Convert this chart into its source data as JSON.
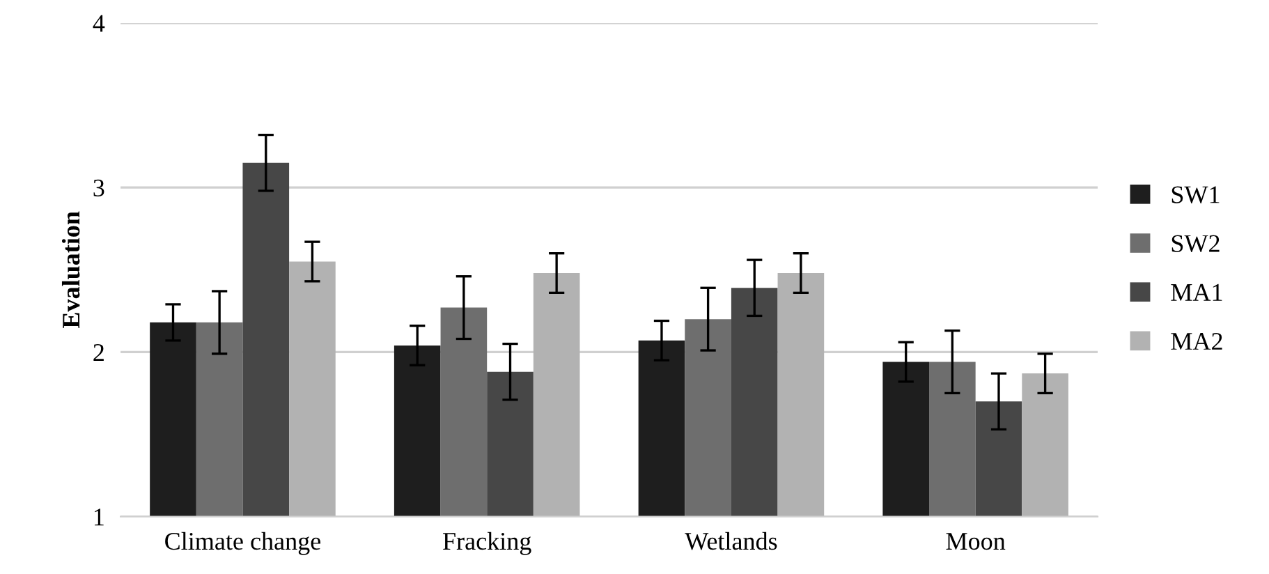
{
  "chart_data": {
    "type": "bar",
    "ylabel": "Evaluation",
    "categories": [
      "Climate change",
      "Fracking",
      "Wetlands",
      "Moon"
    ],
    "series": [
      {
        "name": "SW1",
        "color": "#1e1e1e",
        "values": [
          2.18,
          2.04,
          2.07,
          1.94
        ],
        "errors": [
          0.11,
          0.12,
          0.12,
          0.12
        ]
      },
      {
        "name": "SW2",
        "color": "#6e6e6e",
        "values": [
          2.18,
          2.27,
          2.2,
          1.94
        ],
        "errors": [
          0.19,
          0.19,
          0.19,
          0.19
        ]
      },
      {
        "name": "MA1",
        "color": "#474747",
        "values": [
          3.15,
          1.88,
          2.39,
          1.7
        ],
        "errors": [
          0.17,
          0.17,
          0.17,
          0.17
        ]
      },
      {
        "name": "MA2",
        "color": "#b2b2b2",
        "values": [
          2.55,
          2.48,
          2.48,
          1.87
        ],
        "errors": [
          0.12,
          0.12,
          0.12,
          0.12
        ]
      }
    ],
    "ylim": [
      1,
      4
    ],
    "yticks": [
      1,
      2,
      3,
      4
    ],
    "grid": "y",
    "legend": "right"
  }
}
